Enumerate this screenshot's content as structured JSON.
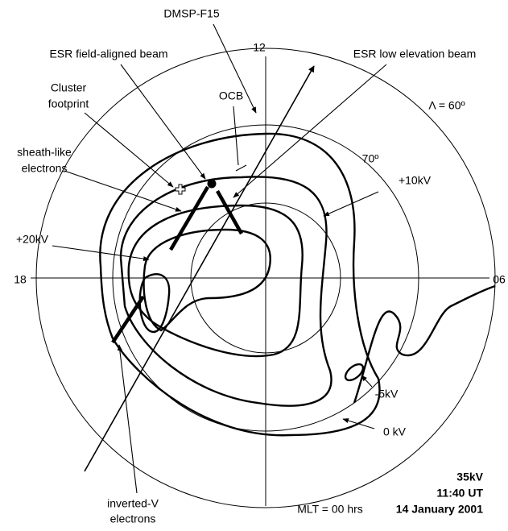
{
  "labels": {
    "satellite": "DMSP-F15",
    "noon": "12",
    "esr_field_aligned": "ESR field-aligned beam",
    "esr_low_elevation": "ESR low elevation beam",
    "ocb": "OCB",
    "lambda": "Λ = 60º",
    "cluster": [
      "Cluster",
      "footprint"
    ],
    "sheath": [
      "sheath-like",
      "electrons"
    ],
    "lat70": "70º",
    "plus10": "+10kV",
    "plus20": "+20kV",
    "dusk": "18",
    "dawn": "06",
    "minus5": "-5kV",
    "zero": "0 kV",
    "mlt": "MLT = 00 hrs",
    "inverted_v": [
      "inverted-V",
      "electrons"
    ]
  },
  "info": {
    "potential": "35kV",
    "time": "11:40 UT",
    "date": "14 January 2001"
  }
}
